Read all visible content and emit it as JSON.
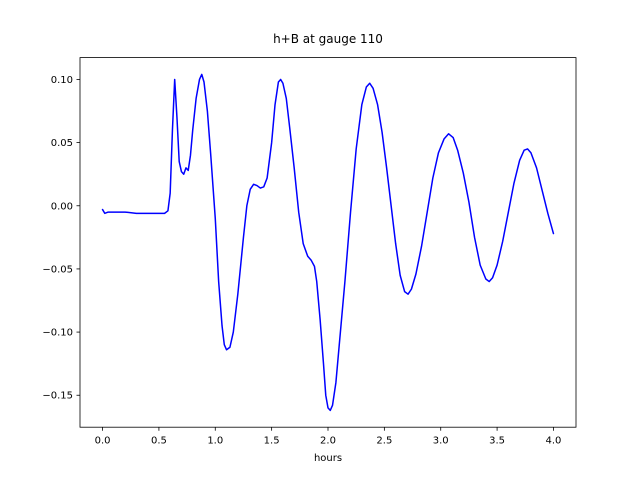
{
  "figure": {
    "background": "#ffffff"
  },
  "chart_data": {
    "type": "line",
    "title": "h+B at gauge 110",
    "xlabel": "hours",
    "ylabel": "",
    "grid": false,
    "legend": false,
    "line_color": "#0000ff",
    "xlim": [
      -0.2,
      4.2
    ],
    "ylim": [
      -0.1753,
      0.1173
    ],
    "xticks": {
      "values": [
        0.0,
        0.5,
        1.0,
        1.5,
        2.0,
        2.5,
        3.0,
        3.5,
        4.0
      ],
      "labels": [
        "0.0",
        "0.5",
        "1.0",
        "1.5",
        "2.0",
        "2.5",
        "3.0",
        "3.5",
        "4.0"
      ]
    },
    "yticks": {
      "values": [
        -0.15,
        -0.1,
        -0.05,
        0.0,
        0.05,
        0.1
      ],
      "labels": [
        "−0.15",
        "−0.10",
        "−0.05",
        "0.00",
        "0.05",
        "0.10"
      ]
    },
    "series": [
      {
        "name": "h+B",
        "color": "#0000ff",
        "x": [
          0.0,
          0.02,
          0.05,
          0.1,
          0.2,
          0.3,
          0.4,
          0.5,
          0.55,
          0.58,
          0.6,
          0.62,
          0.64,
          0.66,
          0.68,
          0.7,
          0.72,
          0.74,
          0.76,
          0.78,
          0.8,
          0.83,
          0.86,
          0.88,
          0.9,
          0.93,
          0.96,
          1.0,
          1.03,
          1.06,
          1.08,
          1.1,
          1.13,
          1.16,
          1.2,
          1.25,
          1.28,
          1.31,
          1.34,
          1.37,
          1.4,
          1.43,
          1.46,
          1.5,
          1.53,
          1.56,
          1.58,
          1.6,
          1.63,
          1.66,
          1.7,
          1.74,
          1.78,
          1.82,
          1.85,
          1.88,
          1.9,
          1.93,
          1.96,
          1.98,
          2.0,
          2.02,
          2.04,
          2.07,
          2.1,
          2.15,
          2.2,
          2.25,
          2.3,
          2.34,
          2.37,
          2.4,
          2.44,
          2.48,
          2.52,
          2.56,
          2.6,
          2.64,
          2.68,
          2.71,
          2.74,
          2.78,
          2.83,
          2.88,
          2.93,
          2.98,
          3.03,
          3.07,
          3.11,
          3.15,
          3.2,
          3.25,
          3.3,
          3.35,
          3.4,
          3.43,
          3.46,
          3.5,
          3.55,
          3.6,
          3.65,
          3.7,
          3.74,
          3.77,
          3.8,
          3.85,
          3.9,
          3.95,
          4.0
        ],
        "y": [
          -0.003,
          -0.006,
          -0.005,
          -0.005,
          -0.005,
          -0.006,
          -0.006,
          -0.006,
          -0.006,
          -0.004,
          0.01,
          0.06,
          0.1,
          0.07,
          0.035,
          0.027,
          0.025,
          0.03,
          0.028,
          0.04,
          0.06,
          0.085,
          0.1,
          0.104,
          0.098,
          0.075,
          0.04,
          -0.01,
          -0.06,
          -0.095,
          -0.11,
          -0.114,
          -0.112,
          -0.1,
          -0.07,
          -0.025,
          0.0,
          0.013,
          0.017,
          0.016,
          0.014,
          0.015,
          0.022,
          0.05,
          0.08,
          0.098,
          0.1,
          0.097,
          0.085,
          0.062,
          0.03,
          -0.005,
          -0.03,
          -0.04,
          -0.043,
          -0.048,
          -0.06,
          -0.09,
          -0.125,
          -0.15,
          -0.16,
          -0.162,
          -0.158,
          -0.14,
          -0.11,
          -0.06,
          -0.005,
          0.045,
          0.08,
          0.094,
          0.097,
          0.093,
          0.08,
          0.058,
          0.03,
          0.0,
          -0.03,
          -0.055,
          -0.068,
          -0.07,
          -0.066,
          -0.054,
          -0.032,
          -0.005,
          0.022,
          0.042,
          0.053,
          0.057,
          0.054,
          0.044,
          0.026,
          0.003,
          -0.025,
          -0.047,
          -0.058,
          -0.06,
          -0.057,
          -0.047,
          -0.028,
          -0.005,
          0.018,
          0.036,
          0.044,
          0.045,
          0.042,
          0.03,
          0.012,
          -0.006,
          -0.022
        ]
      }
    ]
  }
}
